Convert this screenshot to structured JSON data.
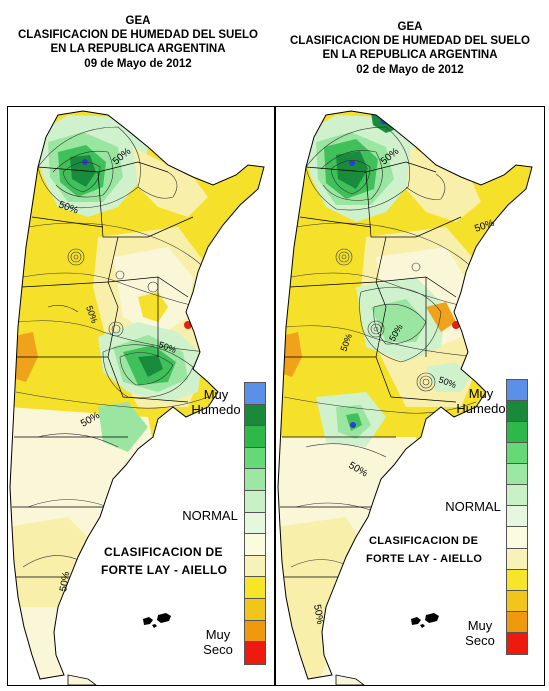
{
  "left": {
    "header": [
      "GEA",
      "CLASIFICACION DE HUMEDAD DEL SUELO",
      "EN LA REPUBLICA ARGENTINA",
      "09 de Mayo de 2012"
    ],
    "legend": {
      "wet": "Muy Humedo",
      "normal": "NORMAL",
      "dry": "Muy Seco",
      "title_1": "CLASIFICACION DE",
      "title_2": "FORTE LAY - AIELLO"
    },
    "contour_labels": [
      "50%",
      "50%",
      "50%",
      "50%",
      "50%",
      "50%"
    ]
  },
  "right": {
    "header": [
      "GEA",
      "CLASIFICACION DE HUMEDAD DEL SUELO",
      "EN LA REPUBLICA ARGENTINA",
      "02 de Mayo de 2012"
    ],
    "legend": {
      "wet": "Muy Humedo",
      "normal": "NORMAL",
      "dry": "Muy Seco",
      "title_1": "CLASIFICACION DE",
      "title_2": "FORTE LAY - AIELLO"
    },
    "contour_labels": [
      "50%",
      "50%",
      "50%",
      "50%",
      "50%",
      "50%",
      "50%"
    ]
  },
  "legend_colors": [
    "#5b8fe8",
    "#1a8a3a",
    "#2fb84a",
    "#66d977",
    "#9ce8a3",
    "#c8f2c6",
    "#e6f7e0",
    "#fbfbe0",
    "#f7f2b8",
    "#f7e52a",
    "#f2c51a",
    "#f0990e",
    "#ee1a10"
  ],
  "colors": {
    "yellow": "#f5e02a",
    "light_yellow": "#f7efaa",
    "cream": "#faf6d8",
    "dark_green": "#188c3c",
    "green": "#3fc05a",
    "light_green": "#9ae6a0",
    "pale_green": "#cff2cc",
    "orange": "#efa21a",
    "red": "#e81e12",
    "blue": "#2a3adf"
  }
}
